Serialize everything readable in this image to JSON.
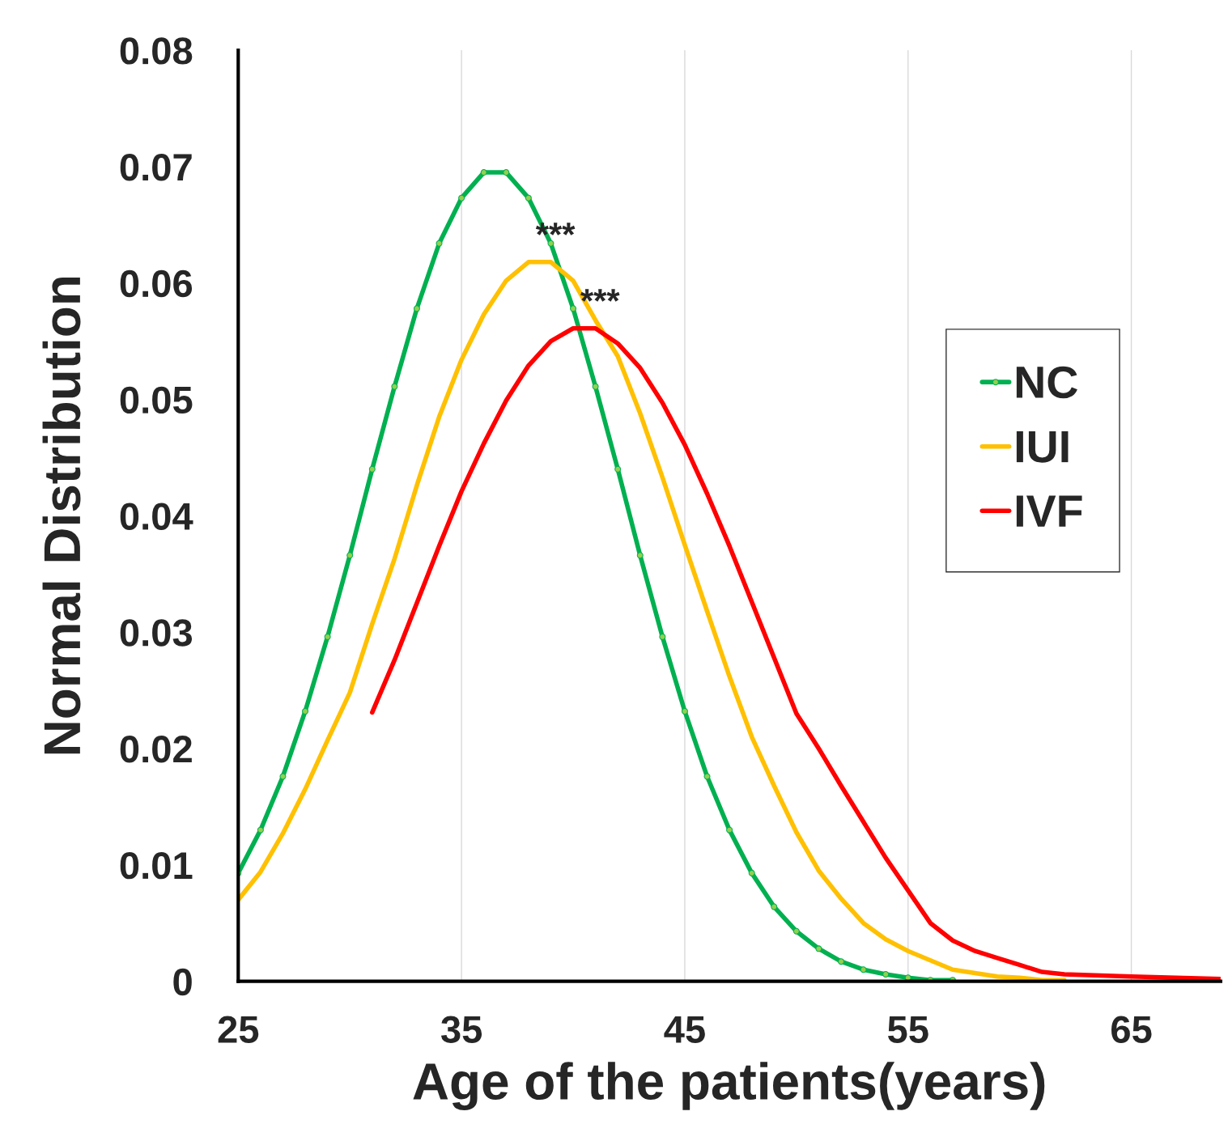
{
  "chart_data": {
    "type": "line",
    "xlabel": "Age of the patients(years)",
    "ylabel": "Normal Distribution",
    "xlim": [
      25,
      69
    ],
    "xticks": [
      25,
      35,
      45,
      55,
      65
    ],
    "ylim": [
      0,
      0.08
    ],
    "yticks": [
      0,
      0.01,
      0.02,
      0.03,
      0.04,
      0.05,
      0.06,
      0.07,
      0.08
    ],
    "grid": "x",
    "legend": "right",
    "series": [
      {
        "name": "NC",
        "color": "#00b050",
        "marker": "circle",
        "x": [
          25,
          26,
          27,
          28,
          29,
          30,
          31,
          32,
          33,
          34,
          35,
          36,
          37,
          38,
          39,
          40,
          41,
          42,
          43,
          44,
          45,
          46,
          47,
          48,
          49,
          50,
          51,
          52,
          53,
          54,
          55,
          56,
          57
        ],
        "values": [
          0.0093,
          0.013,
          0.0176,
          0.0232,
          0.0296,
          0.0366,
          0.044,
          0.0511,
          0.0578,
          0.0634,
          0.0673,
          0.0695,
          0.0695,
          0.0673,
          0.0634,
          0.0578,
          0.0511,
          0.044,
          0.0366,
          0.0296,
          0.0232,
          0.0176,
          0.013,
          0.0093,
          0.0064,
          0.0043,
          0.0028,
          0.0017,
          0.001,
          0.0006,
          0.0003,
          0.0001,
          0.0001
        ]
      },
      {
        "name": "IUI",
        "color": "#ffc000",
        "marker": "none",
        "x": [
          25,
          26,
          27,
          28,
          29,
          30,
          31,
          32,
          33,
          34,
          35,
          36,
          37,
          38,
          39,
          40,
          41,
          42,
          43,
          44,
          45,
          46,
          47,
          48,
          49,
          50,
          51,
          52,
          53,
          54,
          55,
          56,
          57,
          58,
          59,
          60,
          61,
          62
        ],
        "values": [
          0.007,
          0.0094,
          0.0127,
          0.0165,
          0.0207,
          0.0248,
          0.0307,
          0.0363,
          0.0426,
          0.0485,
          0.0534,
          0.0573,
          0.0602,
          0.0618,
          0.0618,
          0.0602,
          0.0568,
          0.0537,
          0.0488,
          0.0433,
          0.0375,
          0.0318,
          0.0262,
          0.021,
          0.0168,
          0.0128,
          0.0095,
          0.0071,
          0.005,
          0.0036,
          0.0026,
          0.0018,
          0.001,
          0.0007,
          0.0004,
          0.0003,
          0.0001,
          0.0001
        ]
      },
      {
        "name": "IVF",
        "color": "#ff0000",
        "marker": "none",
        "x": [
          31,
          32,
          33,
          34,
          35,
          36,
          37,
          38,
          39,
          40,
          41,
          42,
          43,
          44,
          45,
          46,
          47,
          48,
          49,
          50,
          51,
          52,
          53,
          54,
          55,
          56,
          57,
          58,
          59,
          60,
          61,
          62,
          65,
          69
        ],
        "values": [
          0.0231,
          0.0276,
          0.0325,
          0.0374,
          0.0421,
          0.0462,
          0.0499,
          0.0529,
          0.055,
          0.0561,
          0.0561,
          0.0548,
          0.0527,
          0.0497,
          0.0461,
          0.0419,
          0.0374,
          0.0326,
          0.0278,
          0.023,
          0.02,
          0.0168,
          0.0137,
          0.0106,
          0.0078,
          0.005,
          0.0035,
          0.0026,
          0.002,
          0.0014,
          0.0008,
          0.0006,
          0.0004,
          0.0002
        ]
      }
    ],
    "annotations": [
      {
        "text": "***",
        "x": 38.5,
        "y": 0.0618
      },
      {
        "text": "***",
        "x": 40.5,
        "y": 0.0561
      }
    ]
  }
}
